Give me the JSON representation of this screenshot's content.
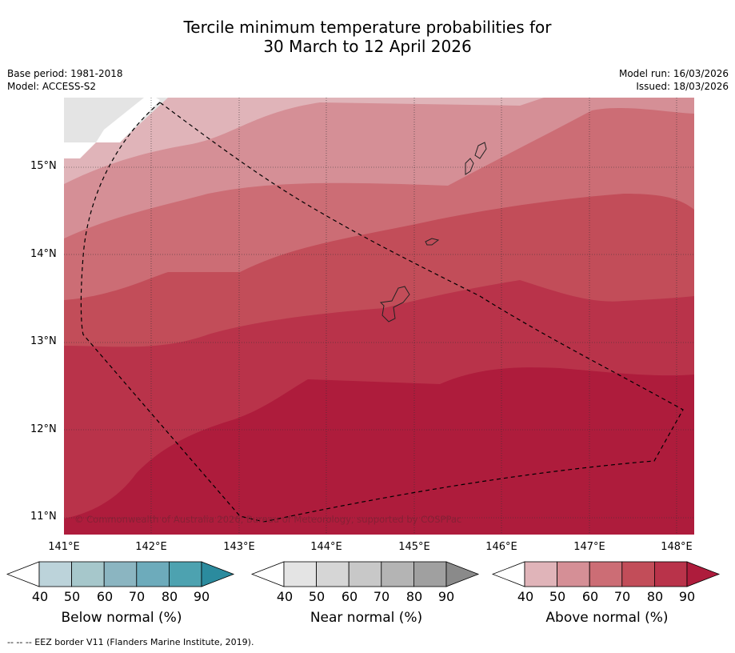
{
  "header": {
    "title_line1": "Tercile minimum temperature probabilities for",
    "title_line2": "30 March to 12 April 2026",
    "base_period": "Base period: 1981-2018",
    "model": "Model: ACCESS-S2",
    "model_run": "Model run: 16/03/2026",
    "issued": "Issued: 18/03/2026"
  },
  "map": {
    "copyright": "© Commonwealth of Australia 2026, Bureau of Meteorology, supported by COSPPac",
    "lat_labels": [
      "15°N",
      "14°N",
      "13°N",
      "12°N",
      "11°N"
    ],
    "lon_labels": [
      "141°E",
      "142°E",
      "143°E",
      "144°E",
      "145°E",
      "146°E",
      "147°E",
      "148°E"
    ]
  },
  "colorbars": [
    {
      "name": "below",
      "label": "Below normal (%)",
      "ticks": [
        "40",
        "50",
        "60",
        "70",
        "80",
        "90"
      ],
      "colors": [
        "#ffffff",
        "#bcd3da",
        "#a6c7cb",
        "#8bb5c1",
        "#6dabbb",
        "#4da2b0",
        "#2b8b9e"
      ]
    },
    {
      "name": "near",
      "label": "Near normal (%)",
      "ticks": [
        "40",
        "50",
        "60",
        "70",
        "80",
        "90"
      ],
      "colors": [
        "#ffffff",
        "#e4e4e4",
        "#d6d6d6",
        "#c8c8c8",
        "#b4b4b4",
        "#a0a0a0",
        "#8a8a8a"
      ]
    },
    {
      "name": "above",
      "label": "Above normal (%)",
      "ticks": [
        "40",
        "50",
        "60",
        "70",
        "80",
        "90"
      ],
      "colors": [
        "#ffffff",
        "#e0b4b9",
        "#d58f96",
        "#cc6d75",
        "#c24d59",
        "#b9334a",
        "#ae1c3c"
      ]
    }
  ],
  "footnote": "--  --  -- EEZ border V11 (Flanders Marine Institute, 2019)."
}
